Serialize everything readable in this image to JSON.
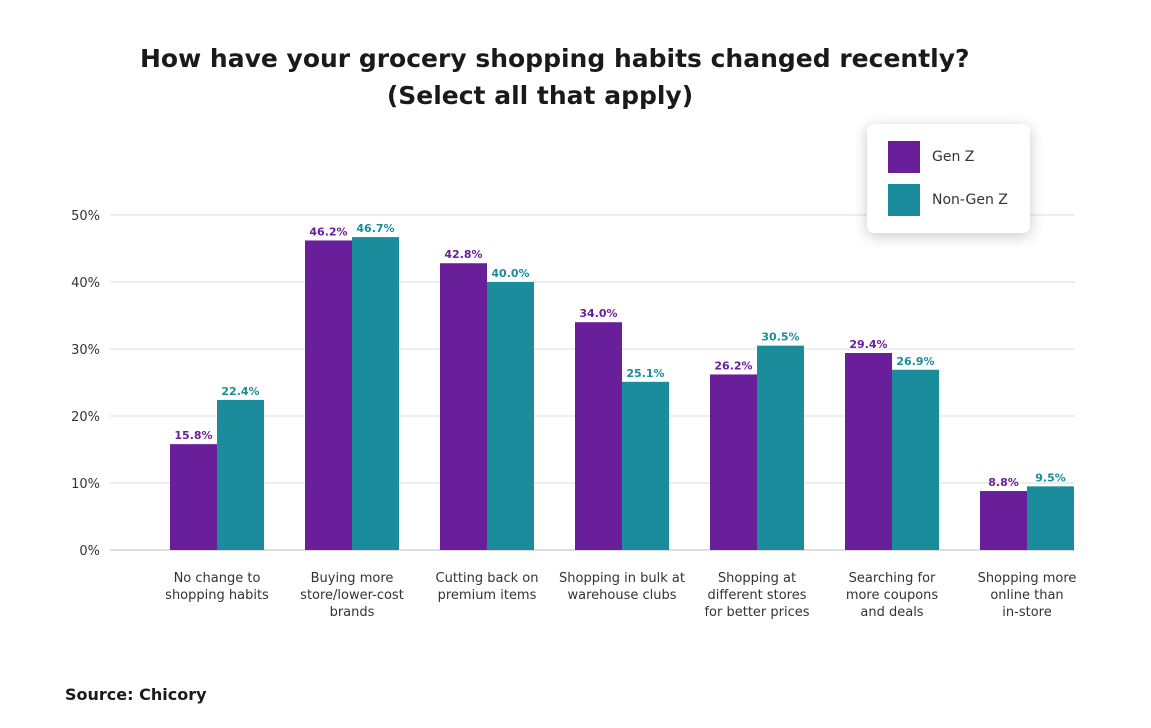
{
  "chart_data": {
    "type": "bar",
    "title_lines": [
      "How have your grocery shopping habits changed recently?",
      "(Select all that apply)"
    ],
    "categories": [
      [
        "No change to",
        "shopping habits"
      ],
      [
        "Buying more",
        "store/lower-cost",
        "brands"
      ],
      [
        "Cutting back on",
        "premium items"
      ],
      [
        "Shopping in bulk at",
        "warehouse clubs"
      ],
      [
        "Shopping at",
        "different stores",
        "for better prices"
      ],
      [
        "Searching for",
        "more coupons",
        "and deals"
      ],
      [
        "Shopping more",
        "online than",
        "in-store"
      ]
    ],
    "series": [
      {
        "name": "Gen Z",
        "color": "#6a1f9a",
        "values": [
          15.8,
          46.2,
          42.8,
          34.0,
          26.2,
          29.4,
          8.8
        ],
        "labels": [
          "15.8%",
          "46.2%",
          "42.8%",
          "34.0%",
          "26.2%",
          "29.4%",
          "8.8%"
        ]
      },
      {
        "name": "Non-Gen Z",
        "color": "#1a8c9c",
        "values": [
          22.4,
          46.7,
          40.0,
          25.1,
          30.5,
          26.9,
          9.5
        ],
        "labels": [
          "22.4%",
          "46.7%",
          "40.0%",
          "25.1%",
          "30.5%",
          "26.9%",
          "9.5%"
        ]
      }
    ],
    "yticks": [
      0,
      10,
      20,
      30,
      40,
      50
    ],
    "ytick_labels": [
      "0%",
      "10%",
      "20%",
      "30%",
      "40%",
      "50%"
    ],
    "ylim": [
      0,
      50
    ],
    "grid": true,
    "legend_position": "top-right",
    "source": "Source: Chicory"
  }
}
